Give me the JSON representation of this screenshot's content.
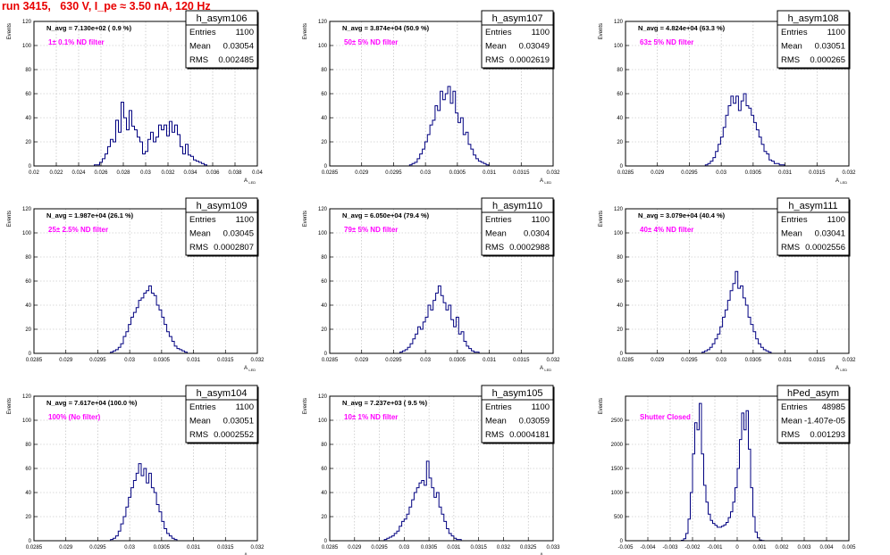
{
  "run_title": "run 3415,   630 V, I_pe ≈ 3.50 nA, 120 Hz",
  "colors": {
    "histogram": "#000080",
    "annotation": "#ff00ff",
    "title": "#e80000",
    "grid": "#b4b4b4",
    "frame": "#000000"
  },
  "stat_labels": {
    "entries": "Entries",
    "mean": "Mean",
    "rms": "RMS"
  },
  "chart_data": [
    {
      "type": "histogram",
      "name": "h_asym106",
      "yaxis_label": "Events",
      "xaxis_label": "A_LED",
      "navg": "N_avg = 7.130e+02 ( 0.9 %)",
      "filter_note": "1± 0.1% ND filter",
      "stats": {
        "entries": "1100",
        "mean": "0.03054",
        "rms": "0.002485"
      },
      "xlim": [
        0.02,
        0.04
      ],
      "ylim": [
        0,
        120
      ],
      "xticks": [
        "0.02",
        "0.022",
        "0.024",
        "0.026",
        "0.028",
        "0.03",
        "0.032",
        "0.034",
        "0.036",
        "0.038",
        "0.04"
      ],
      "yticks": [
        "0",
        "20",
        "40",
        "60",
        "80",
        "100",
        "120"
      ],
      "bin_start": 0.0254,
      "bin_width": 0.00024,
      "values": [
        1,
        1,
        3,
        6,
        10,
        16,
        22,
        20,
        38,
        28,
        53,
        40,
        30,
        46,
        33,
        30,
        24,
        20,
        10,
        12,
        22,
        28,
        20,
        24,
        34,
        30,
        34,
        25,
        37,
        28,
        34,
        26,
        16,
        10,
        18,
        9,
        8,
        5,
        4,
        3,
        2,
        1
      ]
    },
    {
      "type": "histogram",
      "name": "h_asym107",
      "yaxis_label": "Events",
      "xaxis_label": "A_LED",
      "navg": "N_avg = 3.874e+04 (50.9 %)",
      "filter_note": "50± 5% ND filter",
      "stats": {
        "entries": "1100",
        "mean": "0.03049",
        "rms": "0.0002619"
      },
      "xlim": [
        0.0285,
        0.032
      ],
      "ylim": [
        0,
        120
      ],
      "xticks": [
        "0.0285",
        "0.029",
        "0.0295",
        "0.03",
        "0.0305",
        "0.031",
        "0.0315",
        "0.032"
      ],
      "yticks": [
        "0",
        "20",
        "40",
        "60",
        "80",
        "100",
        "120"
      ],
      "bin_start": 0.02975,
      "bin_width": 4e-05,
      "values": [
        1,
        2,
        3,
        6,
        10,
        14,
        20,
        26,
        34,
        38,
        50,
        46,
        62,
        55,
        60,
        66,
        52,
        62,
        44,
        36,
        40,
        26,
        28,
        18,
        14,
        9,
        6,
        4,
        3,
        2,
        1
      ]
    },
    {
      "type": "histogram",
      "name": "h_asym108",
      "yaxis_label": "Events",
      "xaxis_label": "A_LED",
      "navg": "N_avg = 4.824e+04 (63.3 %)",
      "filter_note": "63± 5% ND filter",
      "stats": {
        "entries": "1100",
        "mean": "0.03051",
        "rms": "0.000265"
      },
      "xlim": [
        0.0285,
        0.032
      ],
      "ylim": [
        0,
        120
      ],
      "xticks": [
        "0.0285",
        "0.029",
        "0.0295",
        "0.03",
        "0.0305",
        "0.031",
        "0.0315",
        "0.032"
      ],
      "yticks": [
        "0",
        "20",
        "40",
        "60",
        "80",
        "100",
        "120"
      ],
      "bin_start": 0.02975,
      "bin_width": 4e-05,
      "values": [
        1,
        2,
        4,
        7,
        12,
        18,
        24,
        32,
        42,
        50,
        58,
        52,
        58,
        46,
        54,
        60,
        50,
        48,
        42,
        36,
        30,
        24,
        18,
        12,
        10,
        5,
        4,
        2,
        2,
        1,
        1
      ]
    },
    {
      "type": "histogram",
      "name": "h_asym109",
      "yaxis_label": "Events",
      "xaxis_label": "A_LED",
      "navg": "N_avg = 1.987e+04 (26.1 %)",
      "filter_note": "25± 2.5% ND filter",
      "stats": {
        "entries": "1100",
        "mean": "0.03045",
        "rms": "0.0002807"
      },
      "xlim": [
        0.0285,
        0.032
      ],
      "ylim": [
        0,
        120
      ],
      "xticks": [
        "0.0285",
        "0.029",
        "0.0295",
        "0.03",
        "0.0305",
        "0.031",
        "0.0315",
        "0.032"
      ],
      "yticks": [
        "0",
        "20",
        "40",
        "60",
        "80",
        "100",
        "120"
      ],
      "bin_start": 0.0297,
      "bin_width": 4e-05,
      "values": [
        1,
        2,
        3,
        5,
        8,
        14,
        18,
        24,
        30,
        34,
        38,
        44,
        46,
        50,
        52,
        56,
        50,
        48,
        40,
        36,
        30,
        24,
        18,
        14,
        10,
        6,
        4,
        3,
        2,
        1
      ]
    },
    {
      "type": "histogram",
      "name": "h_asym110",
      "yaxis_label": "Events",
      "xaxis_label": "A_LED",
      "navg": "N_avg = 6.050e+04 (79.4 %)",
      "filter_note": "79± 5% ND filter",
      "stats": {
        "entries": "1100",
        "mean": "0.0304",
        "rms": "0.0002988"
      },
      "xlim": [
        0.0285,
        0.032
      ],
      "ylim": [
        0,
        120
      ],
      "xticks": [
        "0.0285",
        "0.029",
        "0.0295",
        "0.03",
        "0.0305",
        "0.031",
        "0.0315",
        "0.032"
      ],
      "yticks": [
        "0",
        "20",
        "40",
        "60",
        "80",
        "100",
        "120"
      ],
      "bin_start": 0.0296,
      "bin_width": 4e-05,
      "values": [
        1,
        2,
        3,
        5,
        8,
        12,
        16,
        22,
        20,
        26,
        30,
        40,
        36,
        44,
        50,
        56,
        48,
        42,
        36,
        40,
        28,
        22,
        30,
        16,
        18,
        10,
        6,
        4,
        2,
        1,
        1
      ]
    },
    {
      "type": "histogram",
      "name": "h_asym111",
      "yaxis_label": "Events",
      "xaxis_label": "A_LED",
      "navg": "N_avg = 3.079e+04 (40.4 %)",
      "filter_note": "40± 4% ND filter",
      "stats": {
        "entries": "1100",
        "mean": "0.03041",
        "rms": "0.0002556"
      },
      "xlim": [
        0.0285,
        0.032
      ],
      "ylim": [
        0,
        120
      ],
      "xticks": [
        "0.0285",
        "0.029",
        "0.0295",
        "0.03",
        "0.0305",
        "0.031",
        "0.0315",
        "0.032"
      ],
      "yticks": [
        "0",
        "20",
        "40",
        "60",
        "80",
        "100",
        "120"
      ],
      "bin_start": 0.0297,
      "bin_width": 4e-05,
      "values": [
        1,
        2,
        3,
        5,
        8,
        12,
        16,
        22,
        30,
        36,
        44,
        52,
        58,
        68,
        54,
        56,
        46,
        40,
        30,
        24,
        18,
        12,
        8,
        5,
        3,
        2,
        1
      ]
    },
    {
      "type": "histogram",
      "name": "h_asym104",
      "yaxis_label": "Events",
      "xaxis_label": "A_LED",
      "navg": "N_avg = 7.617e+04 (100.0 %)",
      "filter_note": "100% (No filter)",
      "stats": {
        "entries": "1100",
        "mean": "0.03051",
        "rms": "0.0002552"
      },
      "xlim": [
        0.0285,
        0.032
      ],
      "ylim": [
        0,
        120
      ],
      "xticks": [
        "0.0285",
        "0.029",
        "0.0295",
        "0.03",
        "0.0305",
        "0.031",
        "0.0315",
        "0.032"
      ],
      "yticks": [
        "0",
        "20",
        "40",
        "60",
        "80",
        "100",
        "120"
      ],
      "bin_start": 0.0297,
      "bin_width": 4e-05,
      "values": [
        1,
        2,
        4,
        8,
        14,
        20,
        28,
        36,
        44,
        50,
        56,
        64,
        54,
        60,
        48,
        56,
        44,
        40,
        30,
        24,
        16,
        10,
        6,
        4,
        2,
        1
      ]
    },
    {
      "type": "histogram",
      "name": "h_asym105",
      "yaxis_label": "Events",
      "xaxis_label": "A_LED",
      "navg": "N_avg = 7.237e+03 ( 9.5 %)",
      "filter_note": "10± 1% ND filter",
      "stats": {
        "entries": "1100",
        "mean": "0.03059",
        "rms": "0.0004181"
      },
      "xlim": [
        0.0285,
        0.033
      ],
      "ylim": [
        0,
        120
      ],
      "xticks": [
        "0.0285",
        "0.029",
        "0.0295",
        "0.03",
        "0.0305",
        "0.031",
        "0.0315",
        "0.032",
        "0.0325",
        "0.033"
      ],
      "yticks": [
        "0",
        "20",
        "40",
        "60",
        "80",
        "100",
        "120"
      ],
      "bin_start": 0.0296,
      "bin_width": 5e-05,
      "values": [
        1,
        2,
        3,
        4,
        6,
        8,
        12,
        16,
        18,
        22,
        28,
        34,
        40,
        44,
        48,
        50,
        46,
        66,
        52,
        44,
        36,
        40,
        28,
        22,
        16,
        10,
        6,
        4,
        2,
        1,
        1
      ]
    },
    {
      "type": "histogram",
      "name": "hPed_asym",
      "yaxis_label": "Events",
      "xaxis_label": "",
      "navg": "",
      "filter_note": "Shutter Closed",
      "stats": {
        "entries": "48985",
        "mean": "-1.407e-05",
        "rms": "0.001293"
      },
      "xlim": [
        -0.005,
        0.005
      ],
      "ylim": [
        0,
        3000
      ],
      "xticks": [
        "-0.005",
        "-0.004",
        "-0.003",
        "-0.002",
        "-0.001",
        "0",
        "0.001",
        "0.002",
        "0.003",
        "0.004",
        "0.005"
      ],
      "yticks": [
        "0",
        "500",
        "1000",
        "1500",
        "2000",
        "2500"
      ],
      "bin_start": -0.0025,
      "bin_width": 0.0001,
      "values": [
        10,
        40,
        150,
        450,
        1000,
        1800,
        2450,
        2300,
        2850,
        1800,
        1150,
        800,
        550,
        420,
        360,
        320,
        280,
        280,
        300,
        330,
        380,
        480,
        600,
        800,
        1100,
        1500,
        2100,
        2650,
        2300,
        2700,
        1900,
        1100,
        500,
        180,
        60,
        15,
        5
      ]
    }
  ]
}
